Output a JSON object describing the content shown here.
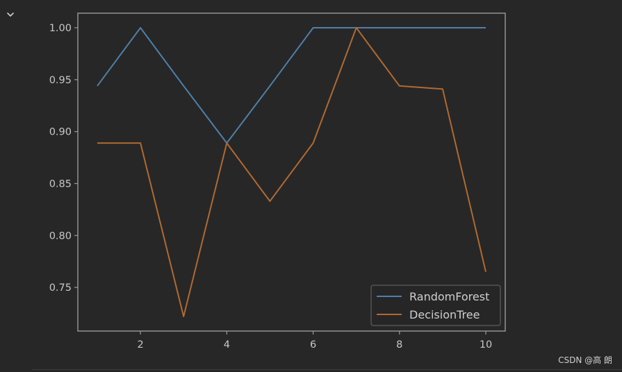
{
  "chart_data": {
    "type": "line",
    "title": "",
    "xlabel": "",
    "ylabel": "",
    "x": [
      1,
      2,
      3,
      4,
      5,
      6,
      7,
      8,
      9,
      10
    ],
    "xlim": [
      0.55,
      10.45
    ],
    "ylim": [
      0.708,
      1.014
    ],
    "xticks": [
      2,
      4,
      6,
      8,
      10
    ],
    "xtick_labels": [
      "2",
      "4",
      "6",
      "8",
      "10"
    ],
    "yticks": [
      0.75,
      0.8,
      0.85,
      0.9,
      0.95,
      1.0
    ],
    "ytick_labels": [
      "0.75",
      "0.80",
      "0.85",
      "0.90",
      "0.95",
      "1.00"
    ],
    "grid": false,
    "legend": "bottom-right",
    "series": [
      {
        "name": "RandomForest",
        "color": "#4f7fa8",
        "values": [
          0.944,
          1.0,
          0.944,
          0.889,
          0.944,
          1.0,
          1.0,
          1.0,
          1.0,
          1.0
        ]
      },
      {
        "name": "DecisionTree",
        "color": "#b06a32",
        "values": [
          0.889,
          0.889,
          0.722,
          0.889,
          0.833,
          0.889,
          1.0,
          0.944,
          0.941,
          0.765
        ]
      }
    ]
  },
  "theme": {
    "background": "#272727",
    "axes_color": "#9a9a9a",
    "text_color": "#c8c8c8"
  },
  "ui": {
    "collapse_icon": "chevron-down-icon"
  },
  "watermark": {
    "text": "CSDN @高 朗"
  }
}
